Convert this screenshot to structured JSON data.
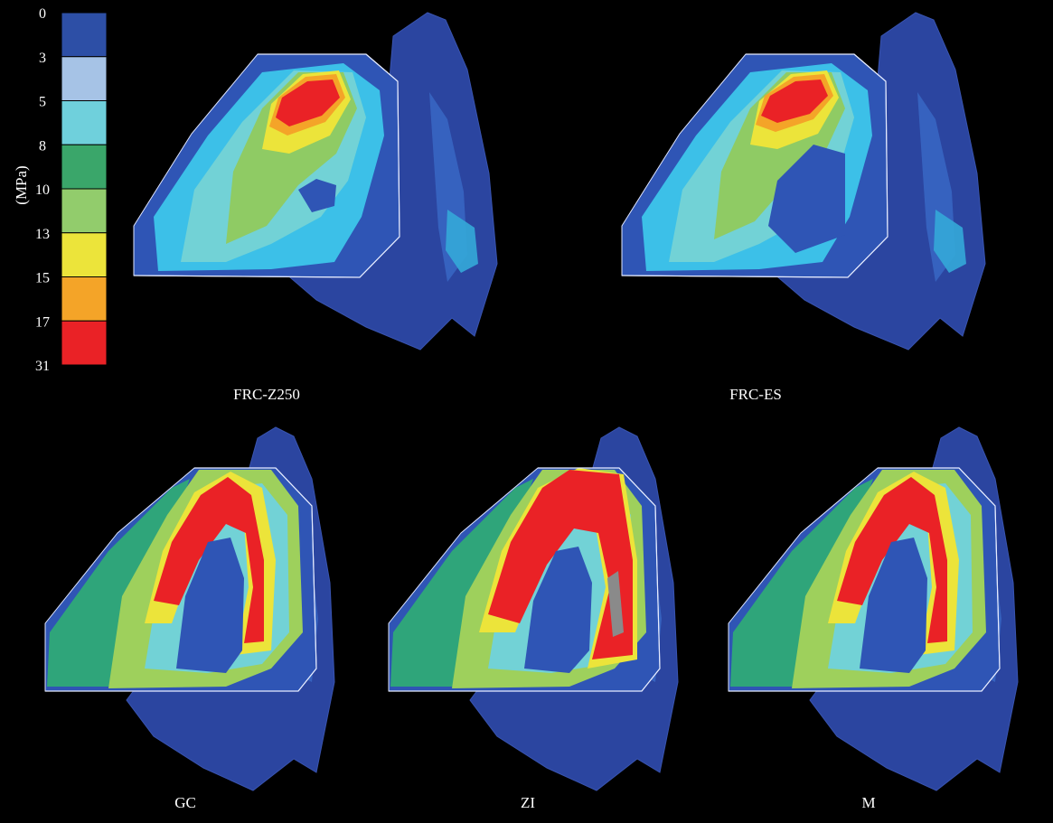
{
  "legend": {
    "unit_label": "(MPa)",
    "ticks": [
      "0",
      "3",
      "5",
      "8",
      "10",
      "13",
      "15",
      "17",
      "31"
    ],
    "bands": [
      {
        "from": "0",
        "to": "3",
        "color": "#2d4fa6"
      },
      {
        "from": "3",
        "to": "5",
        "color": "#a6c3e6"
      },
      {
        "from": "5",
        "to": "8",
        "color": "#6fd0dc"
      },
      {
        "from": "8",
        "to": "10",
        "color": "#3aa66a"
      },
      {
        "from": "10",
        "to": "13",
        "color": "#92cc6c"
      },
      {
        "from": "13",
        "to": "15",
        "color": "#ece43a"
      },
      {
        "from": "15",
        "to": "17",
        "color": "#f4a428"
      },
      {
        "from": "17",
        "to": "31",
        "color": "#ea2226"
      }
    ]
  },
  "panels": [
    {
      "label": "FRC-Z250",
      "stress_pattern": "occlusal-hotspot"
    },
    {
      "label": "FRC-ES",
      "stress_pattern": "occlusal-hotspot"
    },
    {
      "label": "GC",
      "stress_pattern": "ring"
    },
    {
      "label": "ZI",
      "stress_pattern": "ring-strong"
    },
    {
      "label": "M",
      "stress_pattern": "ring"
    }
  ],
  "colors": {
    "background": "#000000",
    "outer_tooth": "#2b45a0",
    "section_base": "#2f55b5",
    "high_stress_core": "#ea2226",
    "overstress": "#8a8a8a"
  }
}
